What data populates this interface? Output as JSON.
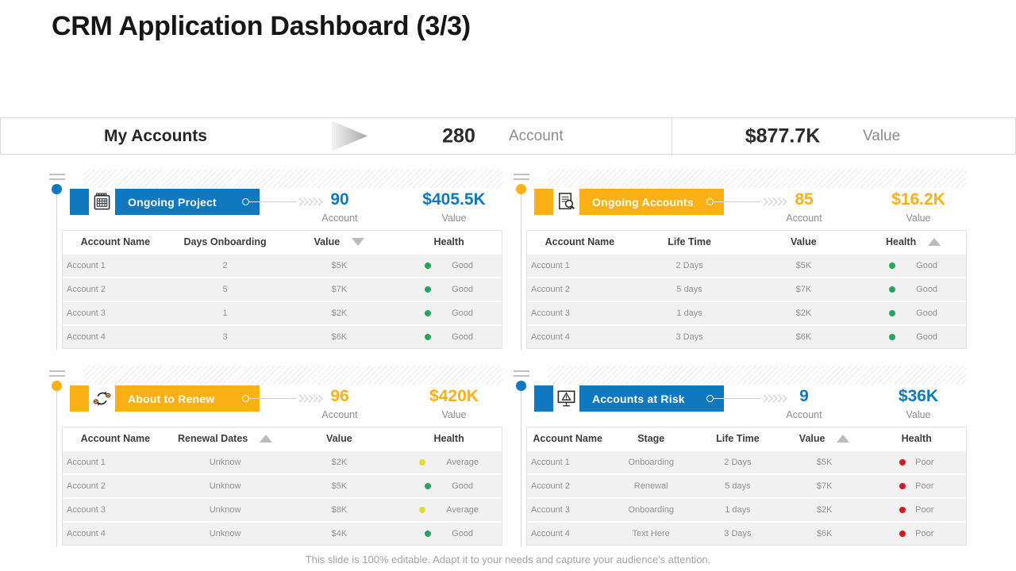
{
  "slide": {
    "title": "CRM Application Dashboard (3/3)",
    "footer": "This slide is 100% editable. Adapt it to your needs and capture your audience's attention."
  },
  "summary_bar": {
    "label": "My Accounts",
    "account_count": "280",
    "account_label": "Account",
    "value_amount": "$877.7K",
    "value_label": "Value"
  },
  "colors": {
    "blue": "#0f78be",
    "yellow": "#fbb116",
    "health_good": "#26a65b",
    "health_average": "#e0dd30",
    "health_poor": "#d21c22",
    "sort_triangle": "#bcbcbc"
  },
  "panels": [
    {
      "title": "Ongoing Project",
      "icon": "notepad-icon",
      "account_count": "90",
      "account_label": "Account",
      "value_amount": "$405.5K",
      "value_label": "Value",
      "table": {
        "columns": [
          {
            "label": "Account Name"
          },
          {
            "label": "Days Onboarding"
          },
          {
            "label": "Value",
            "sort": "desc"
          },
          {
            "label": "Health"
          }
        ],
        "rows": [
          {
            "cells": [
              "Account 1",
              "2",
              "$5K"
            ],
            "health": {
              "label": "Good",
              "color": "#26a65b"
            }
          },
          {
            "cells": [
              "Account 2",
              "5",
              "$7K"
            ],
            "health": {
              "label": "Good",
              "color": "#26a65b"
            }
          },
          {
            "cells": [
              "Account 3",
              "1",
              "$2K"
            ],
            "health": {
              "label": "Good",
              "color": "#26a65b"
            }
          },
          {
            "cells": [
              "Account 4",
              "3",
              "$6K"
            ],
            "health": {
              "label": "Good",
              "color": "#26a65b"
            }
          }
        ]
      }
    },
    {
      "title": "Ongoing Accounts",
      "icon": "search-file-icon",
      "account_count": "85",
      "account_label": "Account",
      "value_amount": "$16.2K",
      "value_label": "Value",
      "table": {
        "columns": [
          {
            "label": "Account Name"
          },
          {
            "label": "Life Time"
          },
          {
            "label": "Value"
          },
          {
            "label": "Health",
            "sort": "asc"
          }
        ],
        "rows": [
          {
            "cells": [
              "Account 1",
              "2 Days",
              "$5K"
            ],
            "health": {
              "label": "Good",
              "color": "#26a65b"
            }
          },
          {
            "cells": [
              "Account 2",
              "5 days",
              "$7K"
            ],
            "health": {
              "label": "Good",
              "color": "#26a65b"
            }
          },
          {
            "cells": [
              "Account 3",
              "1 days",
              "$2K"
            ],
            "health": {
              "label": "Good",
              "color": "#26a65b"
            }
          },
          {
            "cells": [
              "Account 4",
              "3 Days",
              "$6K"
            ],
            "health": {
              "label": "Good",
              "color": "#26a65b"
            }
          }
        ]
      }
    },
    {
      "title": "About to Renew",
      "icon": "renew-cycle-icon",
      "account_count": "96",
      "account_label": "Account",
      "value_amount": "$420K",
      "value_label": "Value",
      "table": {
        "columns": [
          {
            "label": "Account Name"
          },
          {
            "label": "Renewal Dates",
            "sort": "asc"
          },
          {
            "label": "Value"
          },
          {
            "label": "Health"
          }
        ],
        "rows": [
          {
            "cells": [
              "Account 1",
              "Unknow",
              "$2K"
            ],
            "health": {
              "label": "Average",
              "color": "#e0dd30"
            }
          },
          {
            "cells": [
              "Account 2",
              "Unknow",
              "$5K"
            ],
            "health": {
              "label": "Good",
              "color": "#26a65b"
            }
          },
          {
            "cells": [
              "Account 3",
              "Unknow",
              "$8K"
            ],
            "health": {
              "label": "Average",
              "color": "#e0dd30"
            }
          },
          {
            "cells": [
              "Account 4",
              "Unknow",
              "$4K"
            ],
            "health": {
              "label": "Good",
              "color": "#26a65b"
            }
          }
        ]
      }
    },
    {
      "title": "Accounts at Risk",
      "icon": "risk-monitor-icon",
      "account_count": "9",
      "account_label": "Account",
      "value_amount": "$36K",
      "value_label": "Value",
      "table": {
        "columns": [
          {
            "label": "Account Name"
          },
          {
            "label": "Stage"
          },
          {
            "label": "Life Time"
          },
          {
            "label": "Value",
            "sort": "asc"
          },
          {
            "label": "Health"
          }
        ],
        "rows": [
          {
            "cells": [
              "Account 1",
              "Onboarding",
              "2 Days",
              "$5K"
            ],
            "health": {
              "label": "Poor",
              "color": "#d21c22"
            }
          },
          {
            "cells": [
              "Account 2",
              "Renewal",
              "5 days",
              "$7K"
            ],
            "health": {
              "label": "Poor",
              "color": "#d21c22"
            }
          },
          {
            "cells": [
              "Account 3",
              "Onboarding",
              "1 days",
              "$2K"
            ],
            "health": {
              "label": "Poor",
              "color": "#d21c22"
            }
          },
          {
            "cells": [
              "Account 4",
              "Text Here",
              "3 Days",
              "$6K"
            ],
            "health": {
              "label": "Poor",
              "color": "#d21c22"
            }
          }
        ]
      }
    }
  ]
}
